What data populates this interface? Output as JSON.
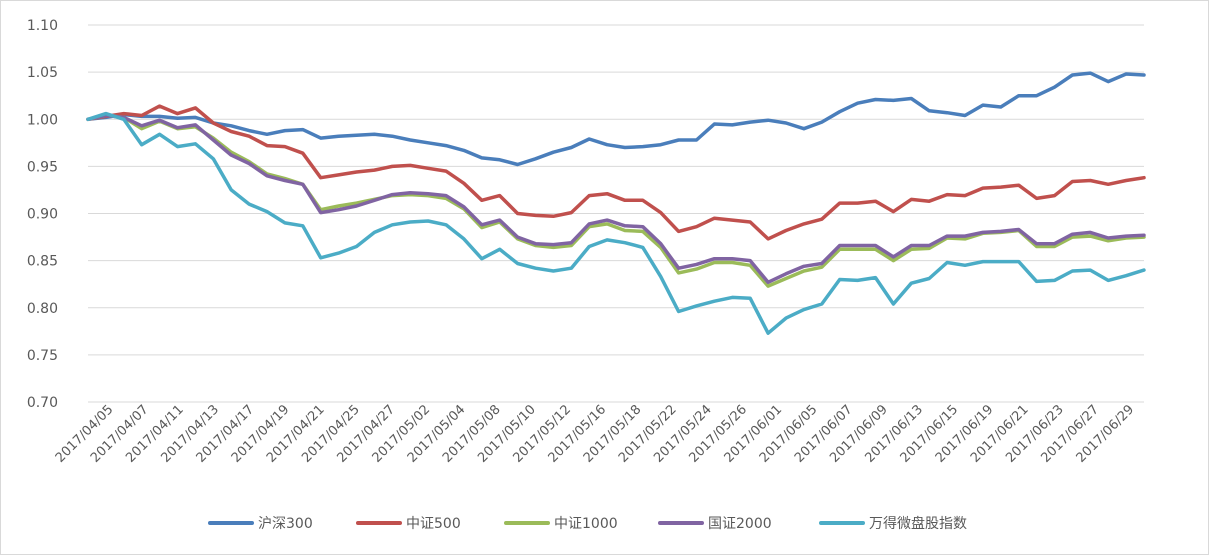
{
  "chart_data": {
    "type": "line",
    "title": "",
    "xlabel": "",
    "ylabel": "",
    "ylim": [
      0.7,
      1.1
    ],
    "yticks": [
      "0.70",
      "0.75",
      "0.80",
      "0.85",
      "0.90",
      "0.95",
      "1.00",
      "1.05",
      "1.10"
    ],
    "grid": "horizontal",
    "legend": "bottom",
    "x_tick_labels": [
      "2017/04/05",
      "2017/04/07",
      "2017/04/11",
      "2017/04/13",
      "2017/04/17",
      "2017/04/19",
      "2017/04/21",
      "2017/04/25",
      "2017/04/27",
      "2017/05/02",
      "2017/05/04",
      "2017/05/08",
      "2017/05/10",
      "2017/05/12",
      "2017/05/16",
      "2017/05/18",
      "2017/05/22",
      "2017/05/24",
      "2017/05/26",
      "2017/06/01",
      "2017/06/05",
      "2017/06/07",
      "2017/06/09",
      "2017/06/13",
      "2017/06/15",
      "2017/06/19",
      "2017/06/21",
      "2017/06/23",
      "2017/06/27",
      "2017/06/29"
    ],
    "series": [
      {
        "name": "沪深300",
        "color": "#4a7ebb",
        "values": [
          1.0,
          1.002,
          1.005,
          1.003,
          1.003,
          1.001,
          1.002,
          0.996,
          0.993,
          0.988,
          0.984,
          0.988,
          0.989,
          0.98,
          0.982,
          0.983,
          0.984,
          0.982,
          0.978,
          0.975,
          0.972,
          0.967,
          0.959,
          0.957,
          0.952,
          0.958,
          0.965,
          0.97,
          0.979,
          0.973,
          0.97,
          0.971,
          0.973,
          0.978,
          0.978,
          0.995,
          0.994,
          0.997,
          0.999,
          0.996,
          0.99,
          0.997,
          1.008,
          1.017,
          1.021,
          1.02,
          1.022,
          1.009,
          1.007,
          1.004,
          1.015,
          1.013,
          1.025,
          1.025,
          1.034,
          1.047,
          1.049,
          1.04,
          1.048,
          1.047
        ]
      },
      {
        "name": "中证500",
        "color": "#c0504d",
        "values": [
          1.0,
          1.003,
          1.006,
          1.004,
          1.014,
          1.006,
          1.012,
          0.996,
          0.987,
          0.982,
          0.972,
          0.971,
          0.964,
          0.938,
          0.941,
          0.944,
          0.946,
          0.95,
          0.951,
          0.948,
          0.945,
          0.932,
          0.914,
          0.919,
          0.9,
          0.898,
          0.897,
          0.901,
          0.919,
          0.921,
          0.914,
          0.914,
          0.901,
          0.881,
          0.886,
          0.895,
          0.893,
          0.891,
          0.873,
          0.882,
          0.889,
          0.894,
          0.911,
          0.911,
          0.913,
          0.902,
          0.915,
          0.913,
          0.92,
          0.919,
          0.927,
          0.928,
          0.93,
          0.916,
          0.919,
          0.934,
          0.935,
          0.931,
          0.935,
          0.938
        ]
      },
      {
        "name": "中证1000",
        "color": "#9bbb59",
        "values": [
          1.0,
          1.004,
          1.002,
          0.99,
          0.998,
          0.99,
          0.992,
          0.98,
          0.965,
          0.955,
          0.942,
          0.937,
          0.931,
          0.904,
          0.908,
          0.911,
          0.915,
          0.919,
          0.92,
          0.919,
          0.916,
          0.905,
          0.885,
          0.891,
          0.873,
          0.866,
          0.864,
          0.866,
          0.886,
          0.889,
          0.882,
          0.881,
          0.864,
          0.837,
          0.841,
          0.848,
          0.848,
          0.845,
          0.823,
          0.831,
          0.839,
          0.843,
          0.862,
          0.862,
          0.862,
          0.85,
          0.862,
          0.863,
          0.874,
          0.873,
          0.879,
          0.88,
          0.882,
          0.865,
          0.865,
          0.875,
          0.876,
          0.871,
          0.874,
          0.875
        ]
      },
      {
        "name": "国证2000",
        "color": "#8064a2",
        "values": [
          1.0,
          1.004,
          1.002,
          0.993,
          0.999,
          0.991,
          0.994,
          0.978,
          0.962,
          0.953,
          0.94,
          0.935,
          0.931,
          0.901,
          0.904,
          0.908,
          0.914,
          0.92,
          0.922,
          0.921,
          0.919,
          0.907,
          0.888,
          0.893,
          0.875,
          0.868,
          0.867,
          0.869,
          0.889,
          0.893,
          0.887,
          0.886,
          0.868,
          0.842,
          0.846,
          0.852,
          0.852,
          0.85,
          0.827,
          0.836,
          0.844,
          0.847,
          0.866,
          0.866,
          0.866,
          0.854,
          0.866,
          0.866,
          0.876,
          0.876,
          0.88,
          0.881,
          0.883,
          0.868,
          0.868,
          0.878,
          0.88,
          0.874,
          0.876,
          0.877
        ]
      },
      {
        "name": "万得微盘股指数",
        "color": "#4bacc6",
        "values": [
          1.0,
          1.006,
          1.0,
          0.973,
          0.984,
          0.971,
          0.974,
          0.958,
          0.925,
          0.91,
          0.902,
          0.89,
          0.887,
          0.853,
          0.858,
          0.865,
          0.88,
          0.888,
          0.891,
          0.892,
          0.888,
          0.873,
          0.852,
          0.862,
          0.847,
          0.842,
          0.839,
          0.842,
          0.865,
          0.872,
          0.869,
          0.864,
          0.833,
          0.796,
          0.802,
          0.807,
          0.811,
          0.81,
          0.773,
          0.789,
          0.798,
          0.804,
          0.83,
          0.829,
          0.832,
          0.804,
          0.826,
          0.831,
          0.848,
          0.845,
          0.849,
          0.849,
          0.849,
          0.828,
          0.829,
          0.839,
          0.84,
          0.829,
          0.834,
          0.84
        ]
      }
    ]
  }
}
